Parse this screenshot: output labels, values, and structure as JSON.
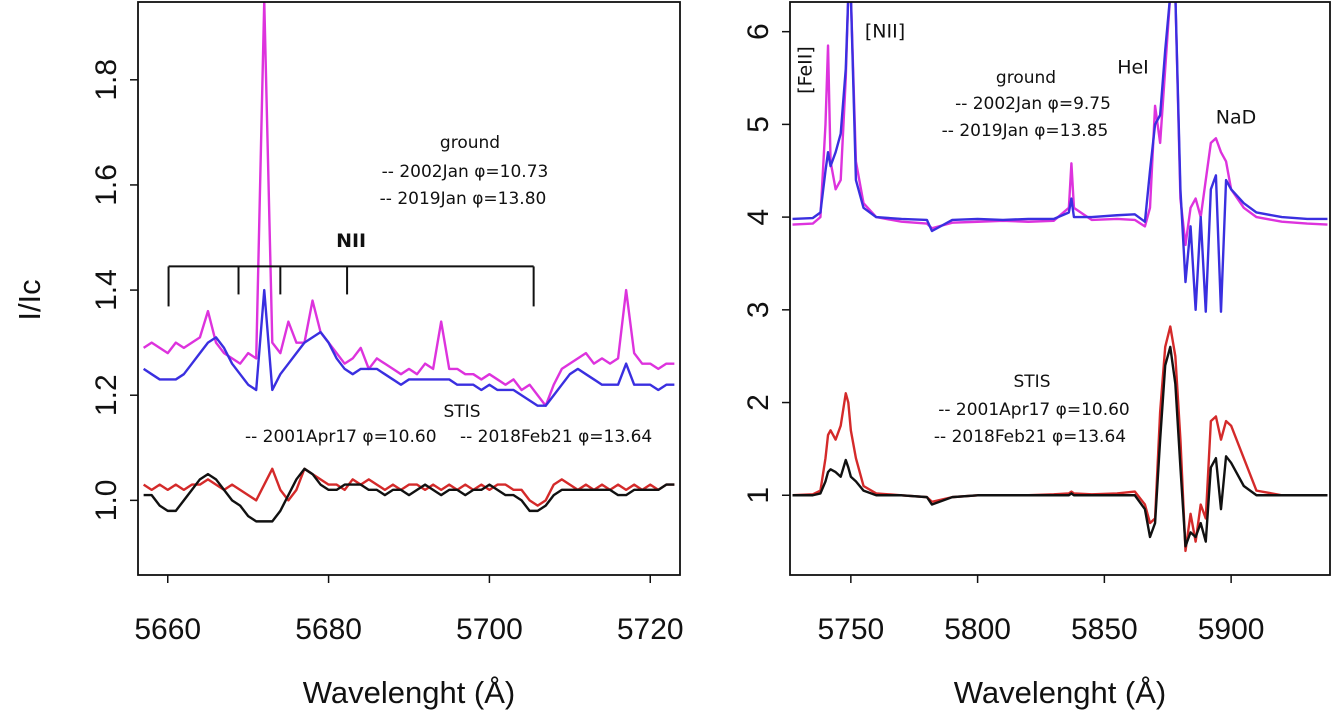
{
  "chart_data": [
    {
      "type": "line",
      "x_label": "Wavelenght (Å)",
      "y_label": "I/Ic",
      "xlim": [
        5656.3,
        5723.7
      ],
      "ylim": [
        0.858,
        1.948
      ],
      "xticks": [
        5660,
        5680,
        5700,
        5720
      ],
      "yticks": [
        {
          "value": 1,
          "label": "1.0"
        },
        1.2,
        1.4,
        1.6,
        1.8
      ],
      "grid": false,
      "groups": [
        "ground",
        "STIS"
      ],
      "markers": {
        "label": "NII",
        "x": [
          5660.1,
          5668.8,
          5674.0,
          5682.3,
          5705.5
        ],
        "y": 1.445
      },
      "x": [
        5657,
        5658,
        5659,
        5660,
        5661,
        5662,
        5663,
        5664,
        5665,
        5666,
        5667,
        5668,
        5669,
        5670,
        5671,
        5672,
        5673,
        5674,
        5675,
        5676,
        5677,
        5678,
        5679,
        5680,
        5681,
        5682,
        5683,
        5684,
        5685,
        5686,
        5687,
        5688,
        5689,
        5690,
        5691,
        5692,
        5693,
        5694,
        5695,
        5696,
        5697,
        5698,
        5699,
        5700,
        5701,
        5702,
        5703,
        5704,
        5705,
        5706,
        5707,
        5708,
        5709,
        5710,
        5711,
        5712,
        5713,
        5714,
        5715,
        5716,
        5717,
        5718,
        5719,
        5720,
        5721,
        5722,
        5723
      ],
      "series": [
        {
          "name": "-- 2002Jan φ=10.73",
          "color": "#dd33dd",
          "label_color": "#d64fd6",
          "group": 0,
          "values": [
            1.29,
            1.3,
            1.29,
            1.28,
            1.3,
            1.29,
            1.3,
            1.31,
            1.36,
            1.3,
            1.28,
            1.27,
            1.26,
            1.28,
            1.27,
            1.95,
            1.3,
            1.28,
            1.34,
            1.3,
            1.3,
            1.38,
            1.32,
            1.3,
            1.28,
            1.26,
            1.27,
            1.29,
            1.25,
            1.27,
            1.26,
            1.25,
            1.24,
            1.25,
            1.24,
            1.26,
            1.25,
            1.34,
            1.25,
            1.25,
            1.24,
            1.24,
            1.23,
            1.24,
            1.23,
            1.22,
            1.23,
            1.21,
            1.22,
            1.2,
            1.18,
            1.22,
            1.25,
            1.26,
            1.27,
            1.28,
            1.26,
            1.27,
            1.26,
            1.27,
            1.4,
            1.28,
            1.26,
            1.26,
            1.25,
            1.26,
            1.26
          ]
        },
        {
          "name": "-- 2019Jan φ=13.80",
          "color": "#3a2fe0",
          "label_color": "#3b50c8",
          "group": 0,
          "values": [
            1.25,
            1.24,
            1.23,
            1.23,
            1.23,
            1.24,
            1.26,
            1.28,
            1.3,
            1.31,
            1.29,
            1.26,
            1.24,
            1.22,
            1.21,
            1.4,
            1.21,
            1.24,
            1.26,
            1.28,
            1.3,
            1.31,
            1.32,
            1.3,
            1.27,
            1.25,
            1.24,
            1.25,
            1.25,
            1.25,
            1.24,
            1.23,
            1.22,
            1.23,
            1.23,
            1.23,
            1.23,
            1.23,
            1.23,
            1.22,
            1.22,
            1.22,
            1.21,
            1.22,
            1.21,
            1.21,
            1.21,
            1.2,
            1.19,
            1.18,
            1.18,
            1.2,
            1.22,
            1.24,
            1.25,
            1.24,
            1.23,
            1.22,
            1.22,
            1.22,
            1.26,
            1.22,
            1.22,
            1.22,
            1.21,
            1.22,
            1.22
          ]
        },
        {
          "name": "-- 2001Apr17 φ=10.60",
          "color": "#d42a2a",
          "label_color": "#c0651f",
          "group": 1,
          "values": [
            1.03,
            1.02,
            1.03,
            1.02,
            1.03,
            1.02,
            1.03,
            1.03,
            1.04,
            1.03,
            1.02,
            1.03,
            1.02,
            1.01,
            1.0,
            1.03,
            1.06,
            1.02,
            1.0,
            1.02,
            1.06,
            1.05,
            1.04,
            1.03,
            1.03,
            1.02,
            1.04,
            1.03,
            1.04,
            1.03,
            1.02,
            1.03,
            1.02,
            1.03,
            1.03,
            1.02,
            1.03,
            1.02,
            1.03,
            1.02,
            1.03,
            1.02,
            1.03,
            1.02,
            1.03,
            1.03,
            1.02,
            1.02,
            1.0,
            0.99,
            1.0,
            1.03,
            1.04,
            1.03,
            1.02,
            1.03,
            1.02,
            1.03,
            1.02,
            1.03,
            1.02,
            1.03,
            1.02,
            1.03,
            1.02,
            1.03,
            1.03
          ]
        },
        {
          "name": "-- 2018Feb21 φ=13.64",
          "color": "#111111",
          "label_color": "#111111",
          "group": 1,
          "values": [
            1.01,
            1.01,
            0.99,
            0.98,
            0.98,
            1.0,
            1.02,
            1.04,
            1.05,
            1.04,
            1.02,
            1.0,
            0.99,
            0.97,
            0.96,
            0.96,
            0.96,
            0.98,
            1.01,
            1.04,
            1.06,
            1.05,
            1.03,
            1.02,
            1.02,
            1.03,
            1.03,
            1.03,
            1.02,
            1.02,
            1.01,
            1.02,
            1.02,
            1.01,
            1.02,
            1.03,
            1.02,
            1.01,
            1.02,
            1.02,
            1.01,
            1.02,
            1.02,
            1.03,
            1.02,
            1.01,
            1.01,
            1.0,
            0.98,
            0.98,
            0.99,
            1.01,
            1.02,
            1.02,
            1.02,
            1.02,
            1.02,
            1.02,
            1.02,
            1.01,
            1.01,
            1.02,
            1.02,
            1.02,
            1.02,
            1.03,
            1.03
          ]
        }
      ]
    },
    {
      "type": "line",
      "x_label": "Wavelenght (Å)",
      "xlim": [
        5726,
        5939
      ],
      "ylim": [
        0.14,
        6.32
      ],
      "xticks": [
        5750,
        5800,
        5850,
        5900
      ],
      "yticks": [
        1,
        2,
        3,
        4,
        5,
        6
      ],
      "grid": false,
      "groups": [
        "ground",
        "STIS"
      ],
      "annotations": [
        "[FeII]",
        "[NII]",
        "HeI",
        "NaD"
      ],
      "x": [
        5727,
        5735,
        5738,
        5740,
        5741,
        5742,
        5744,
        5746,
        5748,
        5749,
        5750,
        5752,
        5755,
        5760,
        5770,
        5780,
        5782,
        5790,
        5800,
        5810,
        5820,
        5830,
        5836,
        5837,
        5838,
        5845,
        5855,
        5862,
        5866,
        5868,
        5870,
        5872,
        5874,
        5876,
        5878,
        5880,
        5882,
        5884,
        5886,
        5888,
        5890,
        5892,
        5894,
        5896,
        5898,
        5900,
        5905,
        5910,
        5920,
        5930,
        5938
      ],
      "series": [
        {
          "name": "-- 2002Jan φ=9.75",
          "color": "#dd33dd",
          "label_color": "#d64fd6",
          "group": 0,
          "values": [
            3.92,
            3.93,
            4.0,
            5.0,
            5.85,
            4.6,
            4.3,
            4.4,
            5.5,
            6.4,
            6.4,
            4.6,
            4.15,
            4.0,
            3.95,
            3.93,
            3.88,
            3.94,
            3.95,
            3.96,
            3.95,
            3.96,
            4.1,
            4.58,
            4.1,
            3.97,
            3.98,
            3.97,
            3.9,
            4.1,
            5.2,
            4.8,
            5.6,
            6.4,
            6.4,
            4.2,
            3.7,
            4.1,
            4.2,
            4.0,
            4.4,
            4.8,
            4.85,
            4.7,
            4.6,
            4.3,
            4.1,
            4.0,
            3.95,
            3.93,
            3.92
          ]
        },
        {
          "name": "-- 2019Jan φ=13.85",
          "color": "#3a2fe0",
          "label_color": "#3b50c8",
          "group": 0,
          "values": [
            3.98,
            3.99,
            4.05,
            4.5,
            4.7,
            4.55,
            4.7,
            4.9,
            5.6,
            6.4,
            6.4,
            4.4,
            4.1,
            4.0,
            3.98,
            3.97,
            3.85,
            3.97,
            3.98,
            3.97,
            3.98,
            3.98,
            4.05,
            4.2,
            4.0,
            4.0,
            4.02,
            4.03,
            3.95,
            4.5,
            5.0,
            5.1,
            5.8,
            6.4,
            6.4,
            4.3,
            3.3,
            3.9,
            3.0,
            4.0,
            2.98,
            4.3,
            4.45,
            2.98,
            4.4,
            4.3,
            4.15,
            4.05,
            4.0,
            3.98,
            3.98
          ]
        },
        {
          "name": "-- 2001Apr17 φ=10.60",
          "color": "#d42a2a",
          "label_color": "#c0651f",
          "group": 1,
          "values": [
            1.0,
            1.01,
            1.05,
            1.4,
            1.65,
            1.7,
            1.6,
            1.75,
            2.1,
            2.0,
            1.7,
            1.4,
            1.1,
            1.02,
            1.0,
            0.98,
            0.93,
            0.98,
            1.0,
            1.0,
            1.0,
            1.01,
            1.02,
            1.04,
            1.02,
            1.01,
            1.02,
            1.04,
            0.9,
            0.7,
            0.75,
            1.9,
            2.6,
            2.82,
            2.5,
            1.6,
            0.4,
            0.8,
            0.5,
            0.9,
            0.75,
            1.8,
            1.85,
            1.6,
            1.8,
            1.75,
            1.4,
            1.05,
            1.0,
            1.0,
            1.0
          ]
        },
        {
          "name": "-- 2018Feb21 φ=13.64",
          "color": "#111111",
          "label_color": "#111111",
          "group": 1,
          "values": [
            1.0,
            1.0,
            1.02,
            1.15,
            1.25,
            1.28,
            1.25,
            1.2,
            1.38,
            1.3,
            1.2,
            1.15,
            1.05,
            1.0,
            1.0,
            0.98,
            0.9,
            0.98,
            1.0,
            1.0,
            1.0,
            1.0,
            1.0,
            1.02,
            1.0,
            1.0,
            1.0,
            1.0,
            0.85,
            0.55,
            0.7,
            1.6,
            2.4,
            2.6,
            2.2,
            1.3,
            0.45,
            0.6,
            0.55,
            0.7,
            0.5,
            1.3,
            1.4,
            0.85,
            1.42,
            1.35,
            1.1,
            1.0,
            1.0,
            1.0,
            1.0
          ]
        }
      ]
    }
  ]
}
